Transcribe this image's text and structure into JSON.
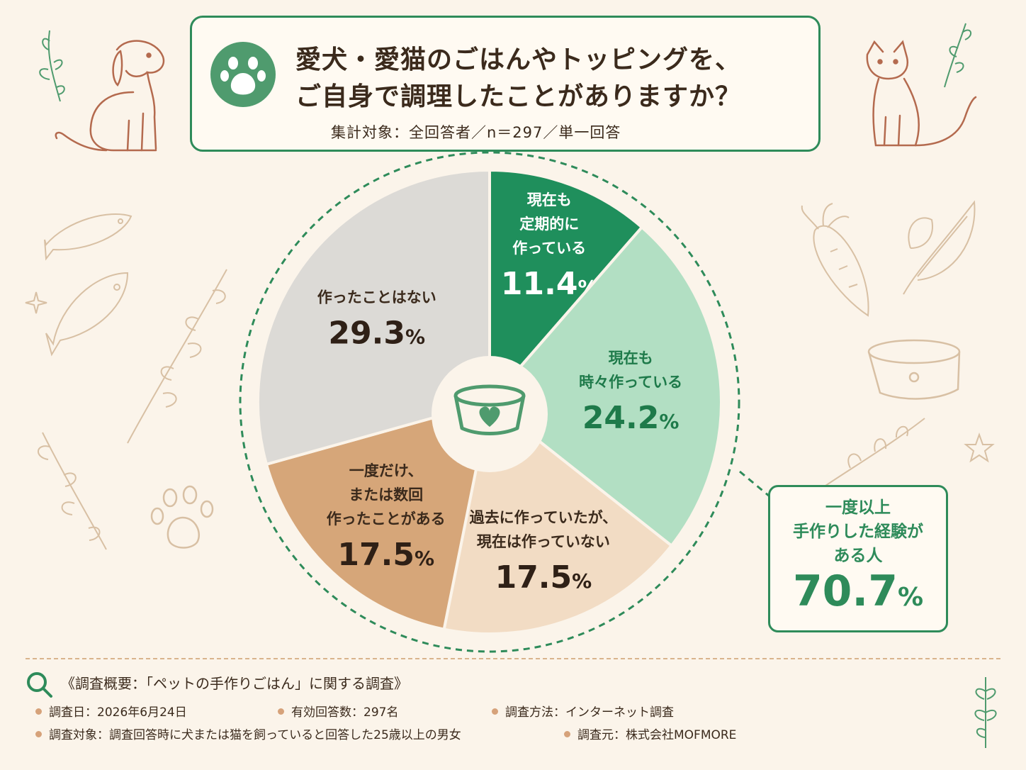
{
  "title": {
    "line1": "愛犬・愛猫のごはんやトッピングを、",
    "line2": "ご自身で調理したことがありますか？",
    "subtitle": "集計対象：全回答者／n＝297／単一回答"
  },
  "chart_data": {
    "type": "pie",
    "unit": "%",
    "slices": [
      {
        "label": "現在も定期的に作っている",
        "lines": [
          "現在も",
          "定期的に",
          "作っている"
        ],
        "value": 11.4,
        "color": "#1f8f5c",
        "text_color": "#ffffff"
      },
      {
        "label": "現在も時々作っている",
        "lines": [
          "現在も",
          "時々作っている"
        ],
        "value": 24.2,
        "color": "#b2dfc3",
        "text_color": "#1e7a4a"
      },
      {
        "label": "過去に作っていたが、現在は作っていない",
        "lines": [
          "過去に作っていたが、",
          "現在は作っていない"
        ],
        "value": 17.5,
        "color": "#f2dcc4",
        "text_color": "#3b2a1c"
      },
      {
        "label": "一度だけ、または数回作ったことがある",
        "lines": [
          "一度だけ、",
          "または数回",
          "作ったことがある"
        ],
        "value": 17.5,
        "color": "#d6a679",
        "text_color": "#3b2a1c"
      },
      {
        "label": "作ったことはない",
        "lines": [
          "作ったことはない"
        ],
        "value": 29.3,
        "color": "#dcdad6",
        "text_color": "#3b2a1c"
      }
    ],
    "highlight": {
      "label_lines": [
        "一度以上",
        "手作りした経験が",
        "ある人"
      ],
      "value": "70.7",
      "pct": "%"
    }
  },
  "survey": {
    "heading": "《調査概要：「ペットの手作りごはん」に関する調査》",
    "date": "調査日：2026年6月24日",
    "responses": "有効回答数：297名",
    "method": "調査方法：インターネット調査",
    "target": "調査対象：調査回答時に犬または猫を飼っていると回答した25歳以上の男女",
    "source": "調査元：株式会社MOFMORE"
  }
}
